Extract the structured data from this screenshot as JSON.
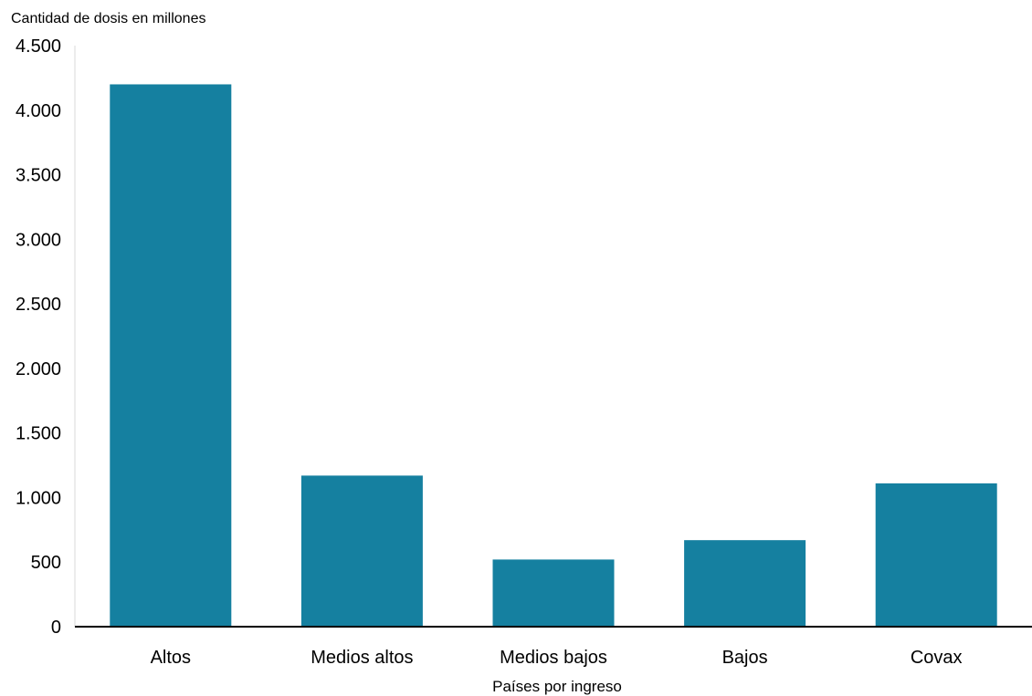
{
  "chart_data": {
    "type": "bar",
    "title": "",
    "ylabel": "Cantidad de dosis en millones",
    "xlabel": "Países por ingreso",
    "categories": [
      "Altos",
      "Medios altos",
      "Medios bajos",
      "Bajos",
      "Covax"
    ],
    "values": [
      4200,
      1170,
      520,
      670,
      1110
    ],
    "ylim": [
      0,
      4500
    ],
    "yticks": [
      0,
      500,
      1000,
      1500,
      2000,
      2500,
      3000,
      3500,
      4000,
      4500
    ],
    "ytick_labels": [
      "0",
      "500",
      "1.000",
      "1.500",
      "2.000",
      "2.500",
      "3.000",
      "3.500",
      "4.000",
      "4.500"
    ],
    "grid": false,
    "colors": {
      "bar": "#1580a0",
      "axis": "#000000",
      "yaxis": "#d9d9d9"
    }
  }
}
